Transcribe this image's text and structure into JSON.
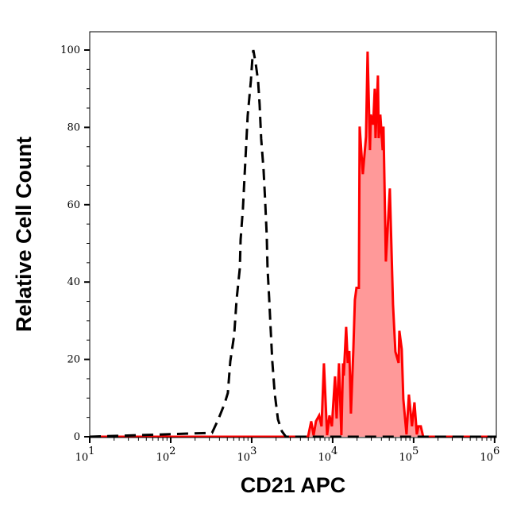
{
  "chart_data": {
    "type": "area",
    "xlabel": "CD21 APC",
    "ylabel": "Relative Cell Count",
    "xscale": "log",
    "xlim": [
      10,
      1050000
    ],
    "ylim": [
      0,
      105
    ],
    "x_ticks": [
      {
        "base": "10",
        "exp": "1",
        "value": 10
      },
      {
        "base": "10",
        "exp": "2",
        "value": 100
      },
      {
        "base": "10",
        "exp": "3",
        "value": 1000
      },
      {
        "base": "10",
        "exp": "4",
        "value": 10000
      },
      {
        "base": "10",
        "exp": "5",
        "value": 100000
      },
      {
        "base": "10",
        "exp": "6",
        "value": 1000000
      }
    ],
    "y_ticks": [
      "0",
      "20",
      "40",
      "60",
      "80",
      "100"
    ],
    "grid": false,
    "series": [
      {
        "style": "dashed-line",
        "color": "#000000",
        "x": [
          10,
          324,
          387,
          464,
          508,
          544,
          608,
          651,
          713,
          730,
          780,
          817,
          854,
          893,
          977,
          1023,
          1047,
          1120,
          1146,
          1199,
          1253,
          1311,
          1403,
          1468,
          1536,
          1571,
          1643,
          1719,
          1799,
          1924,
          2108,
          2362,
          2643,
          1050000
        ],
        "y": [
          0,
          1,
          4.5,
          8.6,
          11.3,
          19.5,
          26.3,
          35.4,
          43.6,
          51,
          59,
          67.5,
          75,
          83,
          92,
          98,
          100,
          96.5,
          95,
          92,
          86,
          77,
          69,
          61,
          52,
          43.6,
          36,
          27.6,
          19.5,
          11.3,
          4.5,
          1.4,
          0,
          0
        ]
      },
      {
        "style": "filled-line",
        "color": "#ff0000",
        "fill": "#ff9999",
        "x": [
          10,
          4966,
          5433,
          5821,
          6223,
          6808,
          7295,
          7798,
          8531,
          9141,
          9772,
          10690,
          11190,
          11970,
          12820,
          13410,
          13710,
          14690,
          15350,
          16070,
          16800,
          17990,
          18830,
          19690,
          21080,
          21550,
          23600,
          25820,
          27000,
          28920,
          29580,
          31620,
          33110,
          33840,
          36240,
          37070,
          38730,
          41480,
          42400,
          45420,
          50820,
          55620,
          59570,
          65160,
          66680,
          71290,
          74650,
          81660,
          87340,
          95500,
          102300,
          109400,
          114500,
          122500,
          131200,
          1050000
        ],
        "y": [
          0,
          0,
          4,
          0.4,
          4,
          5.5,
          2.7,
          19,
          0.4,
          5.5,
          2.7,
          15.6,
          4.7,
          19,
          0.4,
          19,
          15.8,
          28.4,
          19.1,
          22.2,
          6,
          22.2,
          35.4,
          38.5,
          38.5,
          80.2,
          67.9,
          77.6,
          99.6,
          74.1,
          83.3,
          80.7,
          90,
          77.2,
          93.4,
          77.2,
          83.3,
          74.1,
          80.2,
          45.3,
          64.2,
          34.2,
          22,
          19.1,
          27.4,
          22.6,
          9.7,
          0.6,
          10.9,
          2.7,
          8.9,
          0.6,
          2.7,
          2.7,
          0,
          0
        ]
      }
    ]
  }
}
